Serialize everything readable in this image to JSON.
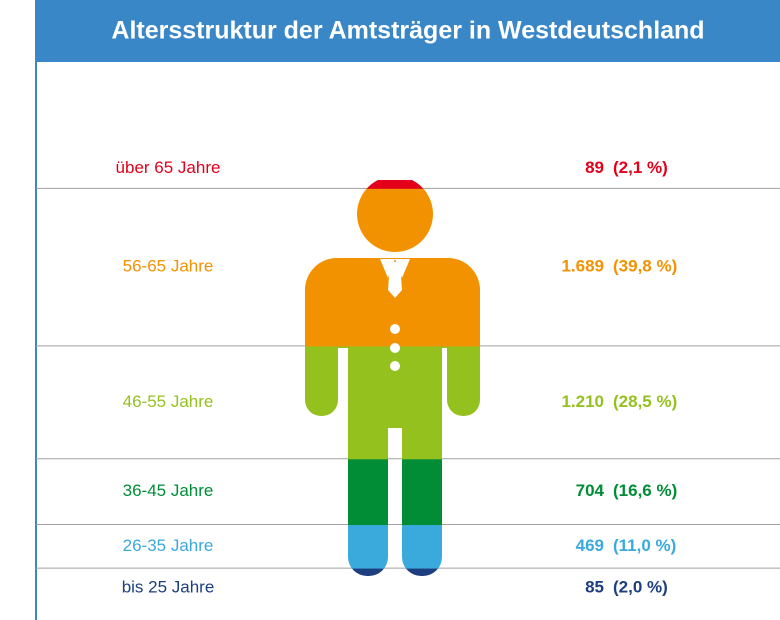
{
  "chart_data": {
    "type": "pictogram",
    "title": "Altersstruktur der Amtsträger in Westdeutschland",
    "categories": [
      "über 65 Jahre",
      "56-65 Jahre",
      "46-55 Jahre",
      "36-45 Jahre",
      "26-35 Jahre",
      "bis 25 Jahre"
    ],
    "values": [
      89,
      1689,
      1210,
      704,
      469,
      85
    ],
    "value_labels": [
      "89",
      "1.689",
      "1.210",
      "704",
      "469",
      "85"
    ],
    "shares": [
      2.1,
      39.8,
      28.5,
      16.6,
      11.0,
      2.0
    ],
    "share_labels": [
      "(2,1 %)",
      "(39,8 %)",
      "(28,5 %)",
      "(16,6 %)",
      "(11,0 %)",
      "(2,0 %)"
    ],
    "colors": [
      "#e2001a",
      "#f39200",
      "#95c11f",
      "#008d36",
      "#3aa9dc",
      "#1d3f7f"
    ],
    "ylim": [
      0,
      100
    ]
  }
}
